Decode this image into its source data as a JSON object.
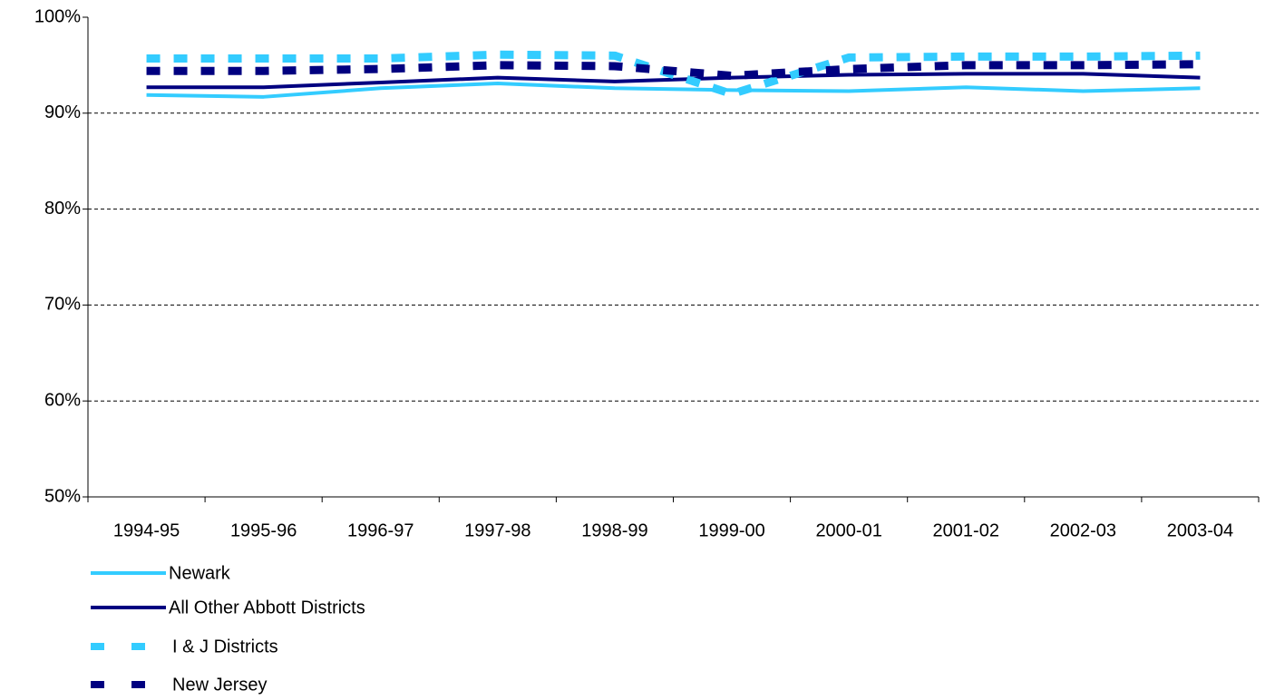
{
  "chart_data": {
    "type": "line",
    "categories": [
      "1994-95",
      "1995-96",
      "1996-97",
      "1997-98",
      "1998-99",
      "1999-00",
      "2000-01",
      "2001-02",
      "2002-03",
      "2003-04"
    ],
    "series": [
      {
        "name": "Newark",
        "color": "#33ccff",
        "dashed": false,
        "values": [
          91.9,
          91.7,
          92.6,
          93.1,
          92.6,
          92.4,
          92.3,
          92.7,
          92.3,
          92.6
        ]
      },
      {
        "name": "All Other Abbott Districts",
        "color": "#000080",
        "dashed": false,
        "values": [
          92.7,
          92.7,
          93.2,
          93.7,
          93.3,
          93.7,
          94.0,
          94.1,
          94.1,
          93.7
        ]
      },
      {
        "name": "I & J Districts",
        "color": "#33ccff",
        "dashed": true,
        "values": [
          95.7,
          95.7,
          95.7,
          96.1,
          96.0,
          92.0,
          95.8,
          95.9,
          95.9,
          96.0
        ]
      },
      {
        "name": "New Jersey",
        "color": "#000080",
        "dashed": true,
        "values": [
          94.4,
          94.4,
          94.6,
          95.0,
          94.9,
          93.9,
          94.6,
          95.0,
          95.0,
          95.1
        ]
      }
    ],
    "ylim": [
      50,
      100
    ],
    "yticks": [
      {
        "value": 50,
        "label": "50%"
      },
      {
        "value": 60,
        "label": "60%"
      },
      {
        "value": 70,
        "label": "70%"
      },
      {
        "value": 80,
        "label": "80%"
      },
      {
        "value": 90,
        "label": "90%"
      },
      {
        "value": 100,
        "label": "100%"
      }
    ],
    "grid": true
  }
}
